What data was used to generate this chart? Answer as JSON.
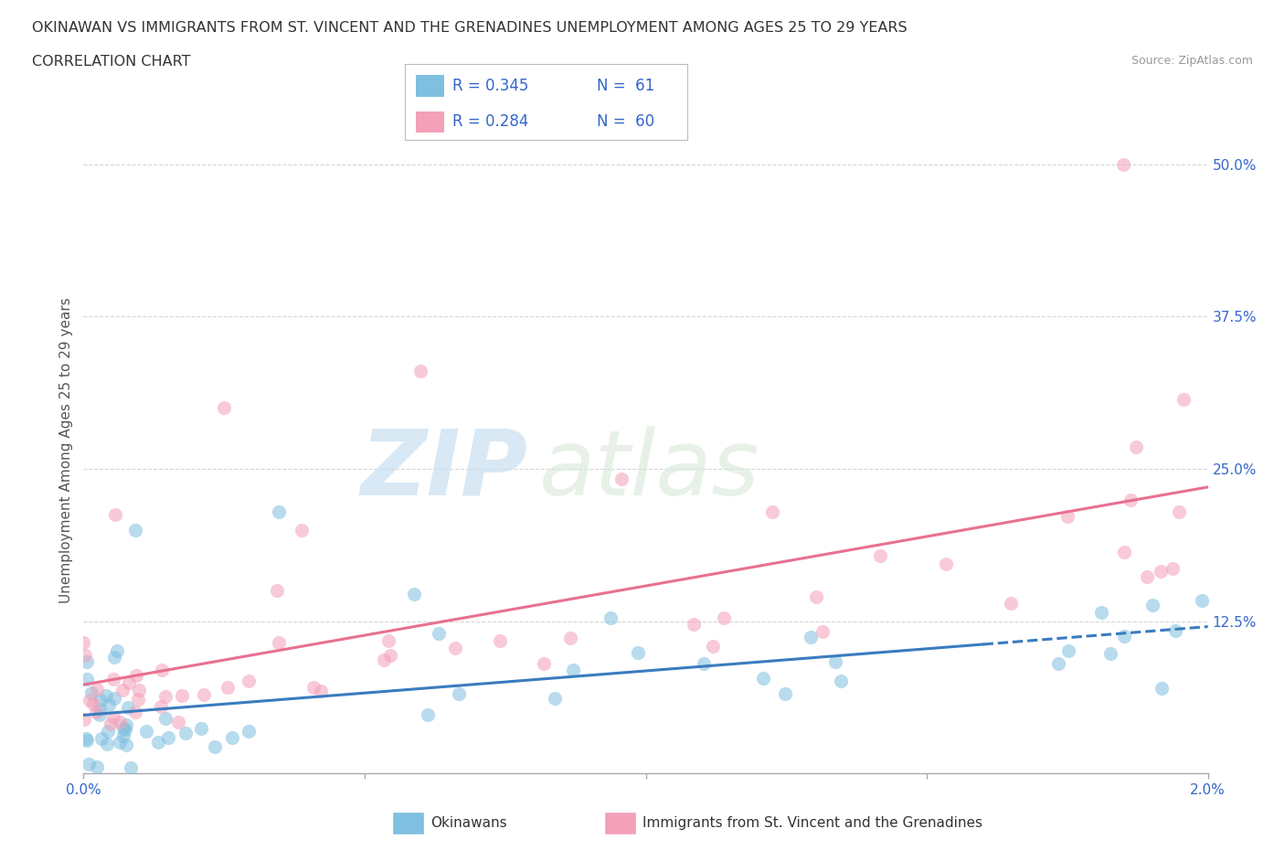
{
  "title_line1": "OKINAWAN VS IMMIGRANTS FROM ST. VINCENT AND THE GRENADINES UNEMPLOYMENT AMONG AGES 25 TO 29 YEARS",
  "title_line2": "CORRELATION CHART",
  "source": "Source: ZipAtlas.com",
  "ylabel": "Unemployment Among Ages 25 to 29 years",
  "xlim": [
    0.0,
    0.02
  ],
  "ylim": [
    0.0,
    0.53
  ],
  "ytick_positions": [
    0.0,
    0.125,
    0.25,
    0.375,
    0.5
  ],
  "yticklabels": [
    "",
    "12.5%",
    "25.0%",
    "37.5%",
    "50.0%"
  ],
  "xtick_positions": [
    0.0,
    0.005,
    0.01,
    0.015,
    0.02
  ],
  "xticklabels": [
    "0.0%",
    "",
    "",
    "",
    "2.0%"
  ],
  "ok_color": "#7fbfdf",
  "svg_color": "#f4a0b8",
  "ok_line_color": "#3a7cbf",
  "svg_line_color": "#e87090",
  "legend_color": "#3366cc",
  "grid_color": "#cccccc",
  "background_color": "#ffffff",
  "watermark_text": "ZIP",
  "watermark_text2": "atlas",
  "title_color": "#333333",
  "source_color": "#999999",
  "ylabel_color": "#555555",
  "ytick_color": "#3366cc",
  "xtick_color": "#3366cc"
}
